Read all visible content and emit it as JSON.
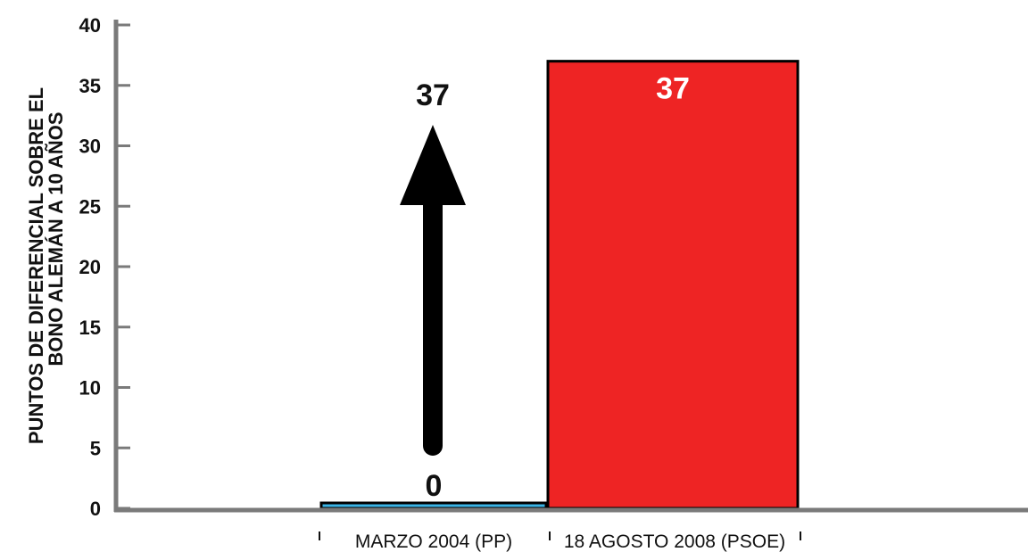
{
  "chart_data": {
    "type": "bar",
    "ylabel_lines": [
      "PUNTOS DE DIFERENCIAL SOBRE EL",
      "BONO ALEMÁN A 10 AÑOS"
    ],
    "ylim": [
      0,
      40
    ],
    "yticks": [
      0,
      5,
      10,
      15,
      20,
      25,
      30,
      35,
      40
    ],
    "categories": [
      "MARZO 2004 (PP)",
      "18 AGOSTO 2008 (PSOE)"
    ],
    "values": [
      0,
      37
    ],
    "data_labels": [
      "0",
      "37"
    ],
    "bar_colors": [
      "#3ab4e6",
      "#ee2424"
    ],
    "annotation": {
      "type": "arrow-up",
      "label": "37",
      "color": "#000000"
    },
    "grid": false,
    "axis_color": "#7a7a7a"
  }
}
